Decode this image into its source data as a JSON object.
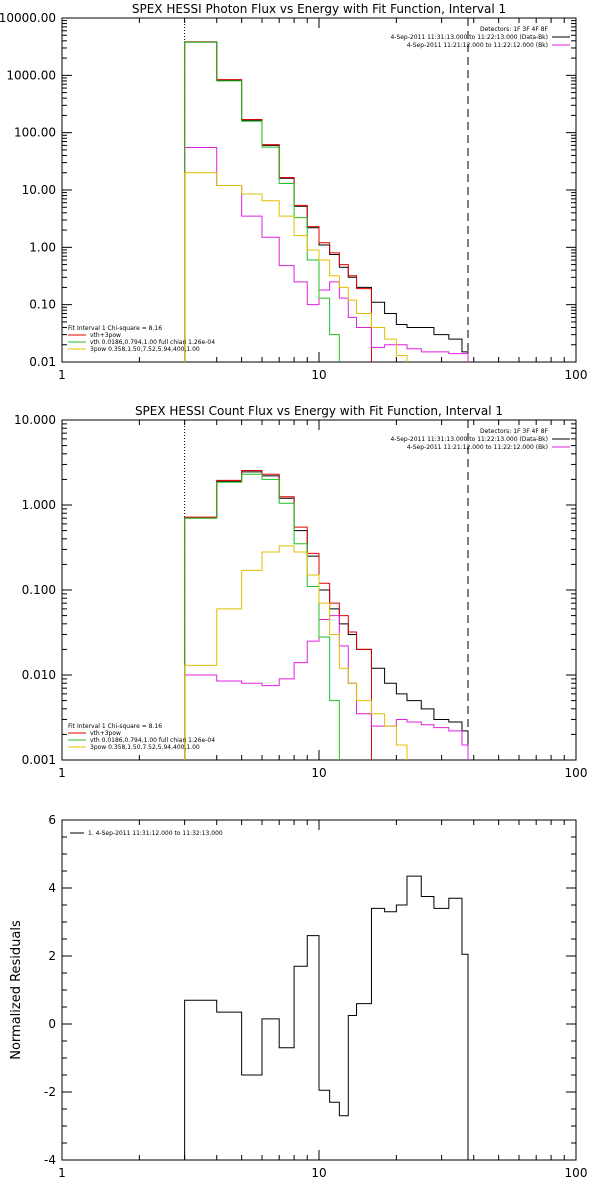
{
  "chart_data": [
    {
      "type": "line",
      "title": "SPEX HESSI Photon Flux vs Energy with Fit Function, Interval 1",
      "xscale": "log",
      "yscale": "log",
      "xlim": [
        1,
        100
      ],
      "ylim": [
        0.01,
        10000
      ],
      "x_ticks": [
        "1",
        "10",
        "100"
      ],
      "y_ticks": [
        "0.01",
        "0.10",
        "1.00",
        "10.00",
        "100.00",
        "1000.00",
        "10000.00"
      ],
      "legend_top": [
        "Detectors: 1F 3F 4F 8F",
        "4-Sep-2011 11:31:13.000 to 11:22:13.000 (Data-Bk)",
        "4-Sep-2011 11:21:12.000 to 11:22:12.000 (Bk)"
      ],
      "legend_bottom": [
        "Fit Interval 1    Chi-square = 8.16",
        "vth+3pow",
        "vth 0.0186,0.794,1.00   full chian 1.26e-04",
        "3pow 0.358,1.50,7.52,5.94,400,1.00"
      ],
      "vlines": [
        {
          "x": 3,
          "style": "dotted"
        },
        {
          "x": 38,
          "style": "dashed"
        }
      ],
      "edges": [
        3,
        4,
        5,
        6,
        7,
        8,
        9,
        10,
        11,
        12,
        13,
        14,
        16,
        18,
        20,
        22,
        25,
        28,
        32,
        36,
        38
      ],
      "series": [
        {
          "name": "4-Sep-2011 11:31:13.000 to 11:22:13.000 (Data-Bk)",
          "color": "#000000",
          "values": [
            3800,
            830,
            165,
            60,
            16,
            5.2,
            2.2,
            1.1,
            0.75,
            0.45,
            0.3,
            0.2,
            0.11,
            0.07,
            0.045,
            0.04,
            0.04,
            0.03,
            0.025,
            0.015
          ]
        },
        {
          "name": "",
          "color": "#e00000",
          "values": [
            3850,
            840,
            170,
            62,
            16.5,
            5.4,
            2.3,
            1.2,
            0.8,
            0.5,
            0.32,
            0.19
          ]
        },
        {
          "name": "4-Sep-2011 11:21:12.000 to 11:22:12.000 (Bk)",
          "color": "#e020e0",
          "values": [
            55,
            12,
            3.5,
            1.5,
            0.48,
            0.25,
            0.1,
            0.18,
            0.25,
            0.13,
            0.06,
            0.04,
            0.018,
            0.02,
            0.02,
            0.017,
            0.015,
            0.015,
            0.014,
            0.014
          ]
        },
        {
          "name": "vth 0.0186,0.794,1.00   full chian 1.26e-04",
          "color": "#20c020",
          "values": [
            3800,
            800,
            158,
            56,
            13,
            3.3,
            0.6,
            0.13,
            0.03,
            0.005
          ]
        },
        {
          "name": "3pow 0.358,1.50,7.52,5.94,400,1.00",
          "color": "#e0c000",
          "values": [
            20,
            12,
            8.5,
            6.5,
            3.5,
            1.6,
            0.9,
            0.6,
            0.32,
            0.2,
            0.12,
            0.07,
            0.04,
            0.025,
            0.013,
            0.008
          ]
        }
      ]
    },
    {
      "type": "line",
      "title": "SPEX HESSI Count Flux vs Energy with Fit Function, Interval 1",
      "xscale": "log",
      "yscale": "log",
      "xlim": [
        1,
        100
      ],
      "ylim": [
        0.001,
        10
      ],
      "x_ticks": [
        "1",
        "10",
        "100"
      ],
      "y_ticks": [
        "0.001",
        "0.010",
        "0.100",
        "1.000",
        "10.000"
      ],
      "legend_top": [
        "Detectors: 1F 3F 4F 8F",
        "4-Sep-2011 11:31:13.000 to 11:22:13.000 (Data-Bk)",
        "4-Sep-2011 11:21:12.000 to 11:22:12.000 (Bk)"
      ],
      "legend_bottom": [
        "Fit Interval 1    Chi-square = 8.16",
        "vth+3pow",
        "vth 0.0186,0.794,1.00   full chian 1.26e-04",
        "3pow 0.358,1.50,7.52,5.94,400,1.00"
      ],
      "vlines": [
        {
          "x": 3,
          "style": "dotted"
        },
        {
          "x": 38,
          "style": "dashed"
        }
      ],
      "edges": [
        3,
        4,
        5,
        6,
        7,
        8,
        9,
        10,
        11,
        12,
        13,
        14,
        16,
        18,
        20,
        22,
        25,
        28,
        32,
        36,
        38
      ],
      "series": [
        {
          "name": "4-Sep-2011 11:31:13.000 to 11:22:13.000 (Data-Bk)",
          "color": "#000000",
          "values": [
            0.7,
            1.9,
            2.45,
            2.2,
            1.2,
            0.5,
            0.25,
            0.1,
            0.06,
            0.04,
            0.03,
            0.02,
            0.012,
            0.008,
            0.006,
            0.005,
            0.004,
            0.003,
            0.0028,
            0.0022
          ]
        },
        {
          "name": "",
          "color": "#e00000",
          "values": [
            0.72,
            1.95,
            2.55,
            2.3,
            1.25,
            0.55,
            0.27,
            0.12,
            0.07,
            0.05,
            0.032,
            0.02
          ]
        },
        {
          "name": "4-Sep-2011 11:21:12.000 to 11:22:12.000 (Bk)",
          "color": "#e020e0",
          "values": [
            0.01,
            0.0085,
            0.008,
            0.0075,
            0.009,
            0.014,
            0.025,
            0.045,
            0.05,
            0.022,
            0.008,
            0.0035,
            0.0025,
            0.0025,
            0.003,
            0.0028,
            0.0026,
            0.0024,
            0.0022,
            0.0015
          ]
        },
        {
          "name": "vth 0.0186,0.794,1.00   full chian 1.26e-04",
          "color": "#20c020",
          "values": [
            0.7,
            1.85,
            2.3,
            2.0,
            1.05,
            0.35,
            0.11,
            0.028,
            0.005,
            0.0008
          ]
        },
        {
          "name": "3pow 0.358,1.50,7.52,5.94,400,1.00",
          "color": "#e0c000",
          "values": [
            0.013,
            0.06,
            0.17,
            0.28,
            0.33,
            0.28,
            0.15,
            0.07,
            0.03,
            0.012,
            0.008,
            0.005,
            0.0035,
            0.0025,
            0.0015,
            0.0008
          ]
        }
      ]
    },
    {
      "type": "line",
      "title": "",
      "ylabel": "Normalized Residuals",
      "xscale": "log",
      "yscale": "linear",
      "xlim": [
        1,
        100
      ],
      "ylim": [
        -4,
        6
      ],
      "x_ticks": [
        "1",
        "10",
        "100"
      ],
      "y_ticks": [
        "-4",
        "-2",
        "0",
        "2",
        "4",
        "6"
      ],
      "legend": [
        "1.  4-Sep-2011 11:31:12.000 to 11:32:13.000"
      ],
      "edges": [
        3,
        4,
        5,
        6,
        7,
        8,
        9,
        10,
        11,
        12,
        13,
        14,
        16,
        18,
        20,
        22,
        25,
        28,
        32,
        36,
        38
      ],
      "series": [
        {
          "name": "1.  4-Sep-2011 11:31:12.000 to 11:32:13.000",
          "color": "#000000",
          "values": [
            0.7,
            0.35,
            -1.5,
            0.15,
            -0.7,
            1.7,
            2.6,
            -1.95,
            -2.3,
            -2.7,
            0.25,
            0.6,
            3.4,
            3.3,
            3.5,
            4.35,
            3.75,
            3.4,
            3.7,
            2.05
          ]
        }
      ]
    }
  ]
}
